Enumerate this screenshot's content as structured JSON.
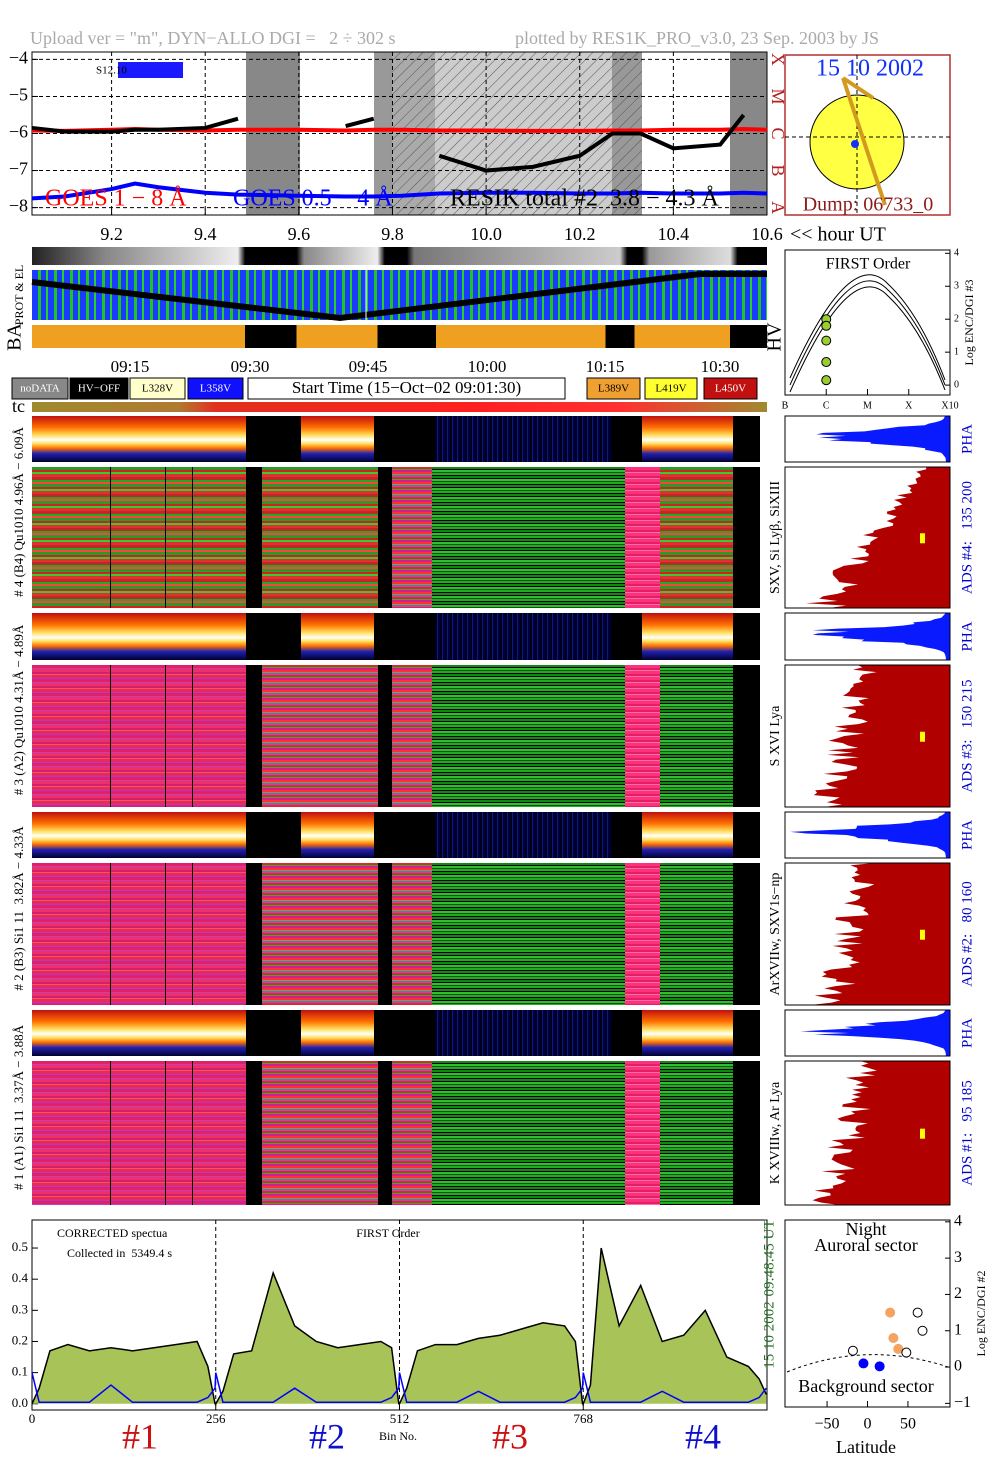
{
  "header": {
    "left": "Upload ver = \"m\", DYN−ALLO DGI =   2 ÷ 302 s",
    "right": "plotted by RES1K_PRO_v3.0, 23 Sep. 2003 by JS"
  },
  "chart_data": [
    {
      "type": "line",
      "xlabel": "<< hour UT",
      "annotation": "S12.10",
      "x": [
        9.03,
        9.1,
        9.2,
        9.25,
        9.3,
        9.4,
        9.47,
        9.6,
        9.7,
        9.76,
        9.82,
        9.9,
        10.0,
        10.1,
        10.2,
        10.27,
        10.33,
        10.4,
        10.5,
        10.55,
        10.6
      ],
      "series": [
        {
          "name": "GOES 1 − 8 Å",
          "color": "#ff0000",
          "values": [
            -5.92,
            -5.93,
            -5.9,
            -5.88,
            -5.9,
            -5.92,
            -5.9,
            -5.9,
            -5.92,
            -5.9,
            -5.9,
            -5.92,
            -5.92,
            -5.93,
            -5.93,
            -5.92,
            -5.92,
            -5.9,
            -5.9,
            -5.88,
            -5.9
          ]
        },
        {
          "name": "GOES 0.5 − 4 Å",
          "color": "#0000ff",
          "values": [
            -7.75,
            -7.7,
            -7.5,
            -7.35,
            -7.45,
            -7.6,
            -7.65,
            -7.68,
            -7.7,
            -7.7,
            -7.68,
            -7.62,
            -7.6,
            -7.6,
            -7.62,
            -7.62,
            -7.6,
            -7.62,
            -7.62,
            -7.6,
            -7.62
          ]
        },
        {
          "name": "RESIK total #2  3.8 − 4.3 Å",
          "color": "#000000",
          "values": [
            -5.85,
            -5.95,
            -5.95,
            -5.9,
            -5.9,
            -5.85,
            -5.6,
            null,
            -5.8,
            -5.6,
            null,
            -6.6,
            -7.0,
            -6.9,
            -6.6,
            -6.0,
            -6.0,
            -6.4,
            -6.3,
            -5.5,
            null
          ]
        }
      ],
      "xlim": [
        9.03,
        10.6
      ],
      "xticks": [
        9.2,
        9.4,
        9.6,
        9.8,
        {
          "value": 10.0,
          "label": "10.0"
        },
        10.2,
        10.4,
        10.6
      ],
      "ylim": [
        -8.2,
        -3.8
      ],
      "yticks": [
        {
          "value": -4,
          "label": "−4"
        },
        {
          "value": -5,
          "label": "−5"
        },
        {
          "value": -6,
          "label": "−6"
        },
        {
          "value": -7,
          "label": "−7"
        },
        {
          "value": -8,
          "label": "−8"
        }
      ],
      "y2lim": [
        -8.2,
        -3.8
      ],
      "y2ticks": [
        {
          "value": -8,
          "label": "A"
        },
        {
          "value": -7,
          "label": "B"
        },
        {
          "value": -6,
          "label": "C"
        },
        {
          "value": -5,
          "label": "M"
        },
        {
          "value": -4,
          "label": "X"
        }
      ],
      "y2_color": "#b22222",
      "grid": true,
      "legend": "bottom"
    },
    {
      "type": "scatter",
      "title": "FIRST Order",
      "ylabel": "Log ENC/DGI #3",
      "yaxis_side": "right",
      "series": [
        {
          "color": "#9acd32",
          "marker": "filled",
          "x": [
            -6,
            -6,
            -6,
            -6,
            -6
          ],
          "values": [
            2.0,
            1.8,
            1.35,
            0.7,
            0.15
          ]
        }
      ],
      "xlim": [
        -7,
        -3
      ],
      "xticks": [
        {
          "value": -7,
          "label": "B"
        },
        {
          "value": -6,
          "label": "C"
        },
        {
          "value": -5,
          "label": "M"
        },
        {
          "value": -4,
          "label": "X"
        },
        {
          "value": -3,
          "label": "X10"
        }
      ],
      "ylim": [
        -0.3,
        4.1
      ],
      "yticks": [
        0,
        1,
        2,
        3,
        4
      ],
      "grid": false
    },
    {
      "type": "line",
      "title": "FIRST Order",
      "xlabel": "Bin No.",
      "annotations": [
        "CORRECTED spectua",
        "Collected in  5349.4 s"
      ],
      "side_labels": [
        "15 10 2002",
        "09:48:45 UT"
      ],
      "group_labels": [
        "#1",
        "#2",
        "#3",
        "#4"
      ],
      "x": [
        0,
        10,
        25,
        50,
        80,
        110,
        140,
        170,
        200,
        230,
        245,
        255,
        256,
        266,
        281,
        306,
        336,
        366,
        396,
        426,
        456,
        486,
        501,
        511,
        512,
        522,
        537,
        562,
        592,
        622,
        652,
        682,
        712,
        742,
        757,
        767,
        768,
        778,
        793,
        818,
        848,
        878,
        908,
        938,
        968,
        998,
        1013,
        1023
      ],
      "series": [
        {
          "color": "#000000",
          "fill": "#a8c458",
          "values": [
            0.0,
            0.05,
            0.17,
            0.19,
            0.17,
            0.18,
            0.17,
            0.18,
            0.19,
            0.2,
            0.12,
            0.0,
            0.0,
            0.04,
            0.16,
            0.17,
            0.42,
            0.25,
            0.2,
            0.18,
            0.19,
            0.2,
            0.18,
            0.0,
            0.0,
            0.05,
            0.17,
            0.19,
            0.19,
            0.21,
            0.22,
            0.24,
            0.26,
            0.25,
            0.2,
            0.0,
            0.0,
            0.06,
            0.5,
            0.25,
            0.38,
            0.2,
            0.22,
            0.3,
            0.15,
            0.12,
            0.08,
            0.03
          ]
        },
        {
          "color": "#0000ff",
          "values": [
            0.1,
            0.005,
            0.005,
            0.005,
            0.005,
            0.06,
            0.005,
            0.005,
            0.005,
            0.005,
            0.02,
            0.05,
            0.1,
            0.005,
            0.005,
            0.005,
            0.005,
            0.05,
            0.005,
            0.005,
            0.005,
            0.005,
            0.02,
            0.05,
            0.1,
            0.005,
            0.005,
            0.005,
            0.005,
            0.04,
            0.005,
            0.005,
            0.005,
            0.005,
            0.02,
            0.05,
            0.1,
            0.005,
            0.005,
            0.005,
            0.005,
            0.04,
            0.005,
            0.005,
            0.005,
            0.005,
            0.02,
            0.05
          ]
        }
      ],
      "xlim": [
        0,
        1024
      ],
      "xticks": [
        0,
        256,
        512,
        768
      ],
      "ylim": [
        -0.02,
        0.59
      ],
      "yticks": [
        {
          "value": 0,
          "label": "0.0"
        },
        0.1,
        0.2,
        0.3,
        0.4,
        0.5
      ],
      "grid": "x"
    },
    {
      "type": "scatter",
      "title": "Night",
      "annotations": [
        "Auroral sector",
        "Background sector"
      ],
      "xlabel": "Latitude",
      "ylabel": "Log ENC/DGI #2",
      "yaxis_side": "right",
      "series": [
        {
          "color": "#f4a460",
          "marker": "filled",
          "x": [
            28,
            32,
            38
          ],
          "values": [
            1.5,
            0.8,
            0.5
          ]
        },
        {
          "color": "#0000ff",
          "marker": "filled",
          "x": [
            -5,
            15
          ],
          "values": [
            0.1,
            0.02
          ]
        },
        {
          "color": "#000000",
          "marker": "open",
          "x": [
            -18,
            62,
            68,
            48
          ],
          "values": [
            0.45,
            1.5,
            1.0,
            0.4
          ]
        }
      ],
      "xlim": [
        -102,
        102
      ],
      "xticks": [
        {
          "value": -50,
          "label": "−50"
        },
        0,
        50
      ],
      "ylim": [
        -1.1,
        4.05
      ],
      "yticks": [
        {
          "value": -1,
          "label": "−1"
        },
        0,
        1,
        2,
        3,
        4
      ],
      "grid": false
    }
  ],
  "sun": {
    "date": "15 10 2002",
    "dump": "Dump: 06733_0"
  },
  "strips": {
    "prot": "PROT & EL",
    "ba": "BA",
    "hv": "HV",
    "tc": "tc"
  },
  "time_axis": [
    "09:15",
    "09:30",
    "09:45",
    "10:00",
    "10:15",
    "10:30"
  ],
  "status_legend": [
    "noDATA",
    "HV−OFF",
    "L328V",
    "L358V",
    "Start Time (15−Oct−02 09:01:30)",
    "L389V",
    "L419V",
    "L450V"
  ],
  "detectors": [
    {
      "label": "# 4 (B4) Qu1010 4.96Å − 6.09Å",
      "pha": "PHA",
      "ads": "ADS #4:   135 200",
      "lines": "SXV, Si Lyβ, SiXIII"
    },
    {
      "label": "# 3 (A2) Qu1010 4.31Å − 4.89Å",
      "pha": "PHA",
      "ads": "ADS #3:   150 215",
      "lines": "S XVI Lya"
    },
    {
      "label": "# 2 (B3) Si1 11  3.82Å − 4.33Å",
      "pha": "PHA",
      "ads": "ADS #2:   80 160",
      "lines": "ArXVIIw, SXV1s−np"
    },
    {
      "label": "# 1 (A1) Si1 11  3.37Å − 3.88Å",
      "pha": "PHA",
      "ads": "ADS #1:   95 185",
      "lines": "K XVIIIw, Ar Lya"
    }
  ]
}
